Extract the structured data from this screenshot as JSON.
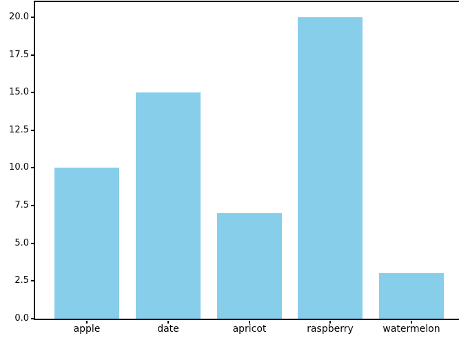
{
  "chart_data": {
    "type": "bar",
    "title": "",
    "xlabel": "",
    "ylabel": "",
    "categories": [
      "apple",
      "date",
      "apricot",
      "raspberry",
      "watermelon"
    ],
    "values": [
      10,
      15,
      7,
      20,
      3
    ],
    "yticks": [
      0,
      2.5,
      5,
      7.5,
      10,
      12.5,
      15,
      17.5,
      20
    ],
    "ytick_labels": [
      "0.0",
      "2.5",
      "5.0",
      "7.5",
      "10.0",
      "12.5",
      "15.0",
      "17.5",
      "20.0"
    ],
    "ylim": [
      0,
      21
    ],
    "xlim": [
      -0.64,
      4.64
    ],
    "grid": false,
    "legend": null,
    "bar_color": "#87CEEB",
    "bar_width_ratio": 0.8,
    "spine_color": "#000000",
    "tick_color": "#000000",
    "text_color": "#000000",
    "background_color": "#ffffff"
  }
}
